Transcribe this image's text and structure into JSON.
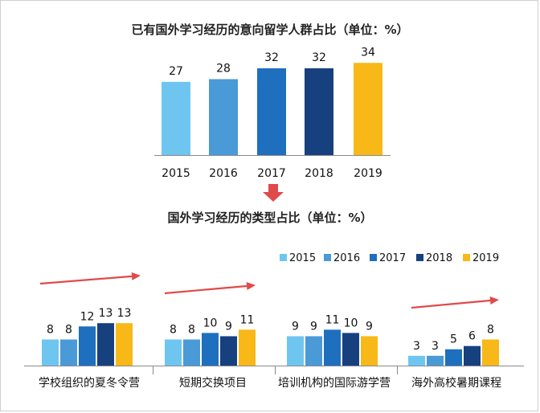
{
  "colors": {
    "2015": "#6ec6f0",
    "2016": "#4a9ad8",
    "2017": "#1f6fbf",
    "2018": "#17407f",
    "2019": "#f7b818",
    "arrow_red": "#e04a4a",
    "axis": "#8a8a8a"
  },
  "chart_data": [
    {
      "type": "bar",
      "title": "已有国外学习经历的意向留学人群占比（单位：%）",
      "categories": [
        "2015",
        "2016",
        "2017",
        "2018",
        "2019"
      ],
      "values": [
        27,
        28,
        32,
        32,
        34
      ],
      "ylim": [
        0,
        40
      ],
      "xlabel": "",
      "ylabel": ""
    },
    {
      "type": "bar",
      "title": "国外学习经历的类型占比（单位：%）",
      "legend": [
        "2015",
        "2016",
        "2017",
        "2018",
        "2019"
      ],
      "legend_position": "top-right",
      "groups": [
        {
          "name": "学校组织的夏冬令营",
          "values": [
            8,
            8,
            12,
            13,
            13
          ]
        },
        {
          "name": "短期交换项目",
          "values": [
            8,
            8,
            10,
            9,
            11
          ]
        },
        {
          "name": "培训机构的国际游学营",
          "values": [
            9,
            9,
            11,
            10,
            9
          ]
        },
        {
          "name": "海外高校暑期课程",
          "values": [
            3,
            3,
            5,
            6,
            8
          ]
        }
      ],
      "ylim": [
        0,
        16
      ]
    }
  ]
}
